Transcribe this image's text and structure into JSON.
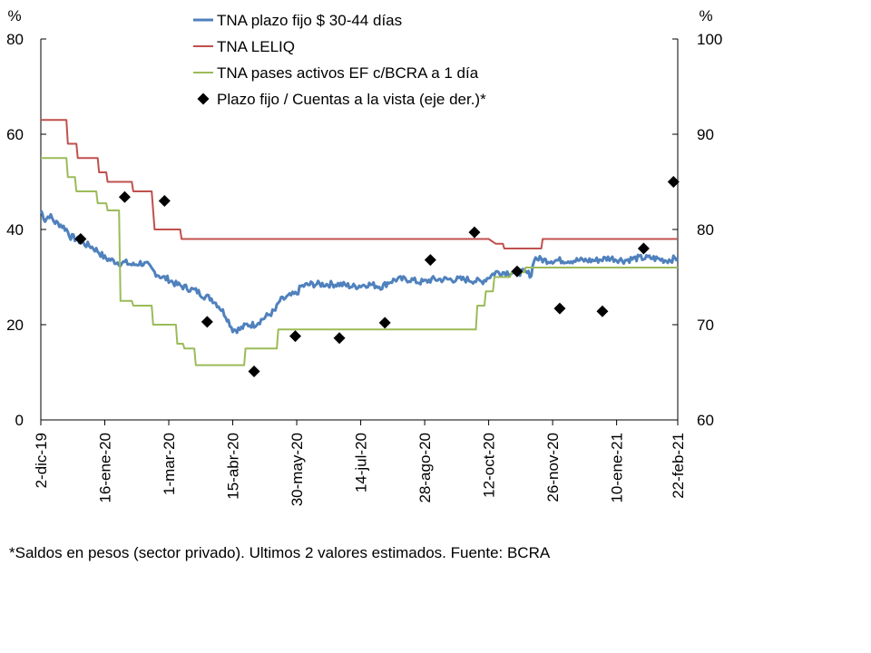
{
  "chart_data": {
    "type": "line",
    "title": "",
    "left_axis_unit": "%",
    "right_axis_unit": "%",
    "ylim_left": [
      0,
      80
    ],
    "yticks_left": [
      "0",
      "20",
      "40",
      "60",
      "80"
    ],
    "ylim_right": [
      60,
      100
    ],
    "yticks_right": [
      "60",
      "70",
      "80",
      "90",
      "100"
    ],
    "x_range_days": [
      0,
      448
    ],
    "x_ticks": [
      {
        "day": 0,
        "label": "2-dic-19"
      },
      {
        "day": 45,
        "label": "16-ene-20"
      },
      {
        "day": 90,
        "label": "1-mar-20"
      },
      {
        "day": 135,
        "label": "15-abr-20"
      },
      {
        "day": 180,
        "label": "30-may-20"
      },
      {
        "day": 225,
        "label": "14-jul-20"
      },
      {
        "day": 270,
        "label": "28-ago-20"
      },
      {
        "day": 315,
        "label": "12-oct-20"
      },
      {
        "day": 360,
        "label": "26-nov-20"
      },
      {
        "day": 405,
        "label": "10-ene-21"
      },
      {
        "day": 448,
        "label": "22-feb-21"
      }
    ],
    "series": [
      {
        "name": "TNA plazo fijo $ 30-44 días",
        "axis": "left",
        "color": "#4f81bd",
        "style": "line-thick",
        "points": [
          [
            0,
            44
          ],
          [
            3,
            42
          ],
          [
            6,
            43
          ],
          [
            10,
            41.5
          ],
          [
            14,
            41
          ],
          [
            18,
            40
          ],
          [
            21,
            38.5
          ],
          [
            25,
            38
          ],
          [
            30,
            37
          ],
          [
            35,
            36.5
          ],
          [
            40,
            35.5
          ],
          [
            45,
            34
          ],
          [
            50,
            33.5
          ],
          [
            55,
            33
          ],
          [
            60,
            33
          ],
          [
            65,
            32.5
          ],
          [
            70,
            33
          ],
          [
            75,
            32.5
          ],
          [
            80,
            31
          ],
          [
            85,
            30
          ],
          [
            90,
            29.5
          ],
          [
            95,
            28.5
          ],
          [
            100,
            28
          ],
          [
            105,
            27.5
          ],
          [
            110,
            27
          ],
          [
            115,
            26
          ],
          [
            120,
            25.5
          ],
          [
            125,
            24
          ],
          [
            130,
            22
          ],
          [
            135,
            19
          ],
          [
            140,
            19
          ],
          [
            145,
            20
          ],
          [
            150,
            20
          ],
          [
            155,
            21
          ],
          [
            160,
            22
          ],
          [
            165,
            23
          ],
          [
            168,
            25
          ],
          [
            175,
            26
          ],
          [
            180,
            26.5
          ],
          [
            183,
            28
          ],
          [
            190,
            28.5
          ],
          [
            200,
            28.5
          ],
          [
            210,
            28.5
          ],
          [
            220,
            28
          ],
          [
            230,
            28.5
          ],
          [
            240,
            28
          ],
          [
            245,
            29
          ],
          [
            250,
            29.5
          ],
          [
            260,
            29.5
          ],
          [
            265,
            29
          ],
          [
            270,
            29
          ],
          [
            275,
            29.5
          ],
          [
            280,
            29.5
          ],
          [
            290,
            29.5
          ],
          [
            300,
            29.5
          ],
          [
            310,
            29
          ],
          [
            315,
            30
          ],
          [
            320,
            31
          ],
          [
            330,
            31
          ],
          [
            340,
            31
          ],
          [
            345,
            30.5
          ],
          [
            347,
            34
          ],
          [
            355,
            33.5
          ],
          [
            360,
            33.5
          ],
          [
            370,
            33.5
          ],
          [
            380,
            33.5
          ],
          [
            390,
            33.5
          ],
          [
            400,
            34
          ],
          [
            410,
            33.5
          ],
          [
            420,
            34
          ],
          [
            430,
            34
          ],
          [
            440,
            33.5
          ],
          [
            448,
            34
          ]
        ]
      },
      {
        "name": "TNA LELIQ",
        "axis": "left",
        "color": "#c0504d",
        "style": "step",
        "points": [
          [
            0,
            63
          ],
          [
            18,
            63
          ],
          [
            19,
            58
          ],
          [
            25,
            58
          ],
          [
            26,
            55
          ],
          [
            40,
            55
          ],
          [
            41,
            52
          ],
          [
            46,
            52
          ],
          [
            47,
            50
          ],
          [
            64,
            50
          ],
          [
            65,
            48
          ],
          [
            78,
            48
          ],
          [
            79,
            44
          ],
          [
            80,
            40
          ],
          [
            98,
            40
          ],
          [
            99,
            38
          ],
          [
            315,
            38
          ],
          [
            320,
            37
          ],
          [
            325,
            37
          ],
          [
            326,
            36
          ],
          [
            352,
            36
          ],
          [
            353,
            38
          ],
          [
            448,
            38
          ]
        ]
      },
      {
        "name": "TNA pases activos EF c/BCRA a 1 día",
        "axis": "left",
        "color": "#9bbb59",
        "style": "step",
        "points": [
          [
            0,
            55
          ],
          [
            18,
            55
          ],
          [
            19,
            51
          ],
          [
            24,
            51
          ],
          [
            25,
            48
          ],
          [
            39,
            48
          ],
          [
            40,
            45.5
          ],
          [
            46,
            45.5
          ],
          [
            47,
            44
          ],
          [
            55,
            44
          ],
          [
            56,
            25
          ],
          [
            64,
            25
          ],
          [
            65,
            24
          ],
          [
            78,
            24
          ],
          [
            79,
            20
          ],
          [
            95,
            20
          ],
          [
            96,
            16
          ],
          [
            100,
            16
          ],
          [
            101,
            15
          ],
          [
            108,
            15
          ],
          [
            109,
            11.5
          ],
          [
            143,
            11.5
          ],
          [
            144,
            15
          ],
          [
            166,
            15
          ],
          [
            167,
            19
          ],
          [
            306,
            19
          ],
          [
            307,
            24
          ],
          [
            312,
            24
          ],
          [
            313,
            27
          ],
          [
            318,
            27
          ],
          [
            319,
            30
          ],
          [
            330,
            30
          ],
          [
            331,
            31
          ],
          [
            340,
            31
          ],
          [
            341,
            32
          ],
          [
            448,
            32
          ]
        ]
      },
      {
        "name": "Plazo fijo / Cuentas a la vista (eje der.)*",
        "axis": "right",
        "color": "#000000",
        "style": "markers",
        "points": [
          [
            28,
            79
          ],
          [
            59,
            83.4
          ],
          [
            87,
            83
          ],
          [
            117,
            70.3
          ],
          [
            150,
            65.1
          ],
          [
            179,
            68.8
          ],
          [
            210,
            68.6
          ],
          [
            242,
            70.2
          ],
          [
            274,
            76.8
          ],
          [
            305,
            79.7
          ],
          [
            335,
            75.6
          ],
          [
            365,
            71.7
          ],
          [
            395,
            71.4
          ],
          [
            424,
            78
          ],
          [
            445,
            85
          ]
        ]
      }
    ]
  },
  "footnote": "*Saldos en pesos (sector privado). Ultimos 2 valores estimados. Fuente: BCRA"
}
